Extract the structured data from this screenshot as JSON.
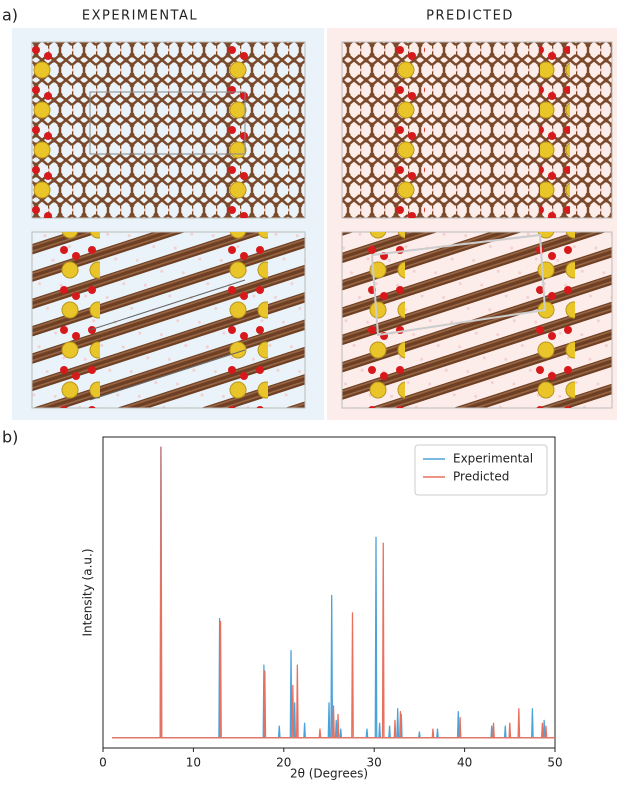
{
  "panels": {
    "a": {
      "label": "a)",
      "left_title": "EXPERIMENTAL",
      "right_title": "PREDICTED"
    },
    "b": {
      "label": "b)"
    }
  },
  "chart_data": {
    "type": "line",
    "xlabel": "2θ (Degrees)",
    "ylabel": "Intensity (a.u.)",
    "xlim": [
      0,
      50
    ],
    "xticks": [
      0,
      10,
      20,
      30,
      40,
      50
    ],
    "ylim": [
      -0.035,
      1.035
    ],
    "grid": false,
    "legend": "upper right",
    "series": [
      {
        "name": "Experimental",
        "color": "#4ba3d9",
        "x": [
          1,
          6.32,
          6.4,
          6.48,
          12.82,
          12.9,
          12.98,
          17.72,
          17.8,
          17.88,
          19.42,
          19.5,
          19.58,
          20.72,
          20.8,
          20.88,
          21.12,
          21.2,
          21.28,
          22.22,
          22.3,
          22.38,
          24.92,
          25.0,
          25.08,
          25.22,
          25.3,
          25.38,
          25.72,
          25.8,
          25.88,
          26.22,
          26.3,
          26.38,
          29.12,
          29.2,
          29.28,
          30.12,
          30.2,
          30.28,
          30.52,
          30.6,
          30.68,
          31.62,
          31.7,
          31.78,
          32.52,
          32.6,
          32.68,
          32.92,
          33.0,
          33.08,
          34.92,
          35.0,
          35.08,
          36.92,
          37.0,
          37.08,
          39.22,
          39.3,
          39.38,
          42.92,
          43.0,
          43.08,
          44.42,
          44.5,
          44.58,
          47.42,
          47.5,
          47.58,
          48.72,
          48.8,
          48.88,
          50
        ],
        "values": [
          0,
          0,
          1.0,
          0,
          0,
          0.41,
          0,
          0,
          0.25,
          0,
          0,
          0.04,
          0,
          0,
          0.3,
          0,
          0,
          0.12,
          0,
          0,
          0.05,
          0,
          0,
          0.12,
          0,
          0,
          0.49,
          0,
          0,
          0.06,
          0,
          0,
          0.03,
          0,
          0,
          0.03,
          0,
          0,
          0.69,
          0,
          0,
          0.05,
          0,
          0,
          0.04,
          0,
          0,
          0.1,
          0,
          0,
          0.08,
          0,
          0,
          0.02,
          0,
          0,
          0.03,
          0,
          0,
          0.09,
          0,
          0,
          0.04,
          0,
          0,
          0.04,
          0,
          0,
          0.1,
          0,
          0,
          0.06,
          0,
          0
        ]
      },
      {
        "name": "Predicted",
        "color": "#e8705f",
        "x": [
          1,
          6.34,
          6.42,
          6.5,
          12.92,
          13.0,
          13.08,
          17.82,
          17.9,
          17.98,
          20.92,
          21.0,
          21.08,
          21.42,
          21.5,
          21.58,
          23.92,
          24.0,
          24.08,
          25.42,
          25.5,
          25.58,
          25.92,
          26.0,
          26.08,
          27.52,
          27.6,
          27.68,
          30.92,
          31.0,
          31.08,
          32.22,
          32.3,
          32.38,
          32.82,
          32.9,
          32.98,
          36.42,
          36.5,
          36.58,
          39.42,
          39.5,
          39.58,
          43.12,
          43.2,
          43.28,
          44.92,
          45.0,
          45.08,
          45.92,
          46.0,
          46.08,
          48.52,
          48.6,
          48.68,
          48.92,
          49.0,
          49.08,
          50
        ],
        "values": [
          0,
          0,
          1.0,
          0,
          0,
          0.4,
          0,
          0,
          0.23,
          0,
          0,
          0.18,
          0,
          0,
          0.25,
          0,
          0,
          0.03,
          0,
          0,
          0.11,
          0,
          0,
          0.08,
          0,
          0,
          0.43,
          0,
          0,
          0.67,
          0,
          0,
          0.06,
          0,
          0,
          0.09,
          0,
          0,
          0.03,
          0,
          0,
          0.07,
          0,
          0,
          0.05,
          0,
          0,
          0.05,
          0,
          0,
          0.1,
          0,
          0,
          0.05,
          0,
          0,
          0.04,
          0,
          0
        ]
      }
    ]
  }
}
